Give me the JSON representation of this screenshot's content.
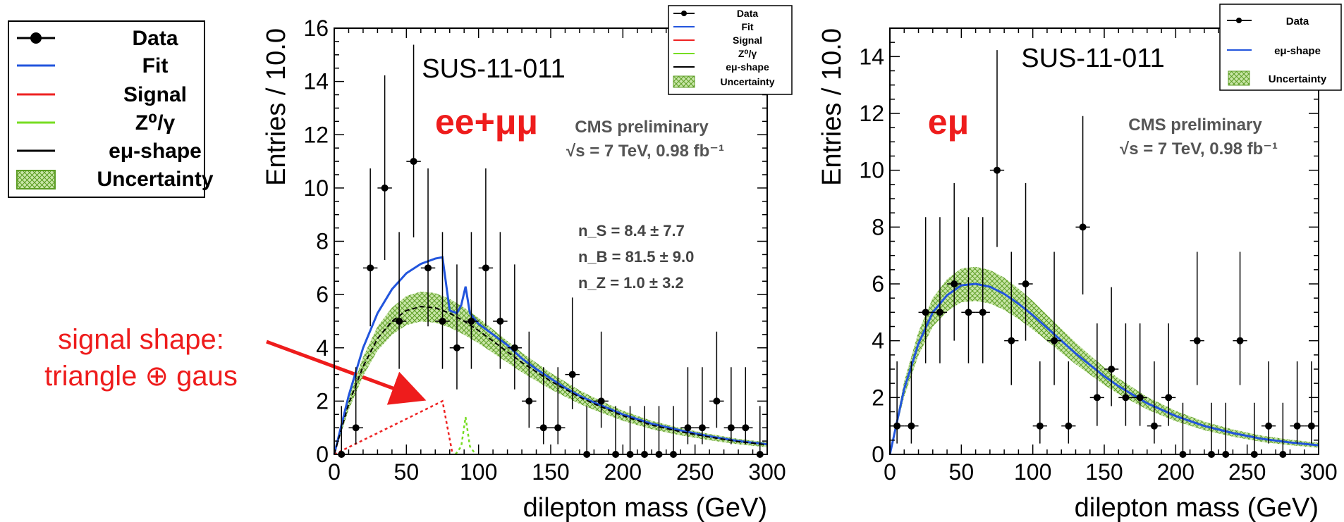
{
  "colors": {
    "data": "#000000",
    "fit": "#2255dd",
    "signal": "#ee2222",
    "z": "#77dd22",
    "emu": "#000000",
    "uncertainty": "#66aa22",
    "annotation": "#ee1c1c"
  },
  "big_legend": {
    "items": [
      "Data",
      "Fit",
      "Signal",
      "Z⁰/γ",
      "eμ-shape",
      "Uncertainty"
    ]
  },
  "annotation": {
    "line1": "signal shape:",
    "line2": "triangle ⊕ gaus"
  },
  "chart_data": [
    {
      "type": "scatter",
      "xlabel": "dilepton mass (GeV)",
      "ylabel": "Entries / 10.0",
      "xlim": [
        0,
        300
      ],
      "ylim": [
        0,
        16
      ],
      "xticks": [
        0,
        50,
        100,
        150,
        200,
        250,
        300
      ],
      "yticks": [
        0,
        2,
        4,
        6,
        8,
        10,
        12,
        14,
        16
      ],
      "tag": "SUS-11-011",
      "channel": "ee+μμ",
      "cms": "CMS preliminary",
      "energy": "√s = 7 TeV, 0.98 fb⁻¹",
      "fit_results": [
        "n_S = 8.4 ± 7.7",
        "n_B = 81.5 ± 9.0",
        "n_Z = 1.0 ± 3.2"
      ],
      "legend": [
        "Data",
        "Fit",
        "Signal",
        "Z⁰/γ",
        "eμ-shape",
        "Uncertainty"
      ],
      "legend_position": "top-right",
      "series": [
        {
          "name": "Data",
          "points": [
            [
              5,
              0
            ],
            [
              15,
              1
            ],
            [
              25,
              7
            ],
            [
              35,
              10
            ],
            [
              45,
              5
            ],
            [
              55,
              11
            ],
            [
              65,
              7
            ],
            [
              75,
              5
            ],
            [
              85,
              4
            ],
            [
              95,
              5
            ],
            [
              105,
              7
            ],
            [
              115,
              5
            ],
            [
              125,
              4
            ],
            [
              135,
              2
            ],
            [
              145,
              1
            ],
            [
              155,
              1
            ],
            [
              165,
              3
            ],
            [
              175,
              0
            ],
            [
              185,
              2
            ],
            [
              195,
              0
            ],
            [
              205,
              0
            ],
            [
              215,
              0
            ],
            [
              225,
              0
            ],
            [
              235,
              0
            ],
            [
              245,
              1
            ],
            [
              255,
              1
            ],
            [
              265,
              2
            ],
            [
              275,
              1
            ],
            [
              285,
              1
            ],
            [
              295,
              0
            ]
          ]
        },
        {
          "name": "Fit",
          "points": [
            [
              0,
              0
            ],
            [
              10,
              2.2
            ],
            [
              20,
              4.0
            ],
            [
              30,
              5.3
            ],
            [
              40,
              6.2
            ],
            [
              50,
              6.8
            ],
            [
              60,
              7.15
            ],
            [
              70,
              7.35
            ],
            [
              75,
              7.4
            ],
            [
              80,
              5.4
            ],
            [
              85,
              5.3
            ],
            [
              88,
              5.6
            ],
            [
              91,
              6.3
            ],
            [
              94,
              5.3
            ],
            [
              100,
              4.9
            ],
            [
              110,
              4.5
            ],
            [
              120,
              4.1
            ],
            [
              130,
              3.6
            ],
            [
              140,
              3.2
            ],
            [
              150,
              2.85
            ],
            [
              160,
              2.5
            ],
            [
              170,
              2.2
            ],
            [
              180,
              1.95
            ],
            [
              200,
              1.5
            ],
            [
              220,
              1.15
            ],
            [
              240,
              0.9
            ],
            [
              260,
              0.68
            ],
            [
              280,
              0.5
            ],
            [
              300,
              0.38
            ]
          ]
        },
        {
          "name": "Signal",
          "points": [
            [
              0,
              0
            ],
            [
              75,
              2.0
            ],
            [
              82,
              0
            ]
          ]
        },
        {
          "name": "Z⁰/γ",
          "points": [
            [
              84,
              0
            ],
            [
              88,
              0.3
            ],
            [
              91,
              1.4
            ],
            [
              94,
              0.3
            ],
            [
              98,
              0
            ]
          ]
        },
        {
          "name": "eμ-shape",
          "points": [
            [
              0,
              0
            ],
            [
              10,
              1.9
            ],
            [
              20,
              3.3
            ],
            [
              30,
              4.35
            ],
            [
              40,
              5.0
            ],
            [
              50,
              5.4
            ],
            [
              60,
              5.55
            ],
            [
              70,
              5.5
            ],
            [
              80,
              5.3
            ],
            [
              90,
              5.0
            ],
            [
              100,
              4.65
            ],
            [
              110,
              4.25
            ],
            [
              120,
              3.85
            ],
            [
              130,
              3.45
            ],
            [
              140,
              3.1
            ],
            [
              150,
              2.75
            ],
            [
              160,
              2.45
            ],
            [
              170,
              2.15
            ],
            [
              180,
              1.9
            ],
            [
              200,
              1.45
            ],
            [
              220,
              1.1
            ],
            [
              240,
              0.85
            ],
            [
              260,
              0.65
            ],
            [
              280,
              0.48
            ],
            [
              300,
              0.36
            ]
          ]
        }
      ]
    },
    {
      "type": "scatter",
      "xlabel": "dilepton mass (GeV)",
      "ylabel": "Entries / 10.0",
      "xlim": [
        0,
        300
      ],
      "ylim": [
        0,
        15
      ],
      "xticks": [
        0,
        50,
        100,
        150,
        200,
        250,
        300
      ],
      "yticks": [
        0,
        2,
        4,
        6,
        8,
        10,
        12,
        14
      ],
      "tag": "SUS-11-011",
      "channel": "eμ",
      "cms": "CMS preliminary",
      "energy": "√s = 7 TeV, 0.98 fb⁻¹",
      "legend": [
        "Data",
        "eμ-shape",
        "Uncertainty"
      ],
      "legend_position": "top-right",
      "series": [
        {
          "name": "Data",
          "points": [
            [
              5,
              1
            ],
            [
              15,
              1
            ],
            [
              25,
              5
            ],
            [
              35,
              5
            ],
            [
              45,
              6
            ],
            [
              55,
              5
            ],
            [
              65,
              5
            ],
            [
              75,
              10
            ],
            [
              85,
              4
            ],
            [
              95,
              6
            ],
            [
              105,
              1
            ],
            [
              115,
              4
            ],
            [
              125,
              1
            ],
            [
              135,
              8
            ],
            [
              145,
              2
            ],
            [
              155,
              3
            ],
            [
              165,
              2
            ],
            [
              175,
              2
            ],
            [
              185,
              1
            ],
            [
              195,
              2
            ],
            [
              205,
              0
            ],
            [
              215,
              4
            ],
            [
              225,
              0
            ],
            [
              235,
              0
            ],
            [
              245,
              4
            ],
            [
              255,
              0
            ],
            [
              265,
              1
            ],
            [
              275,
              0
            ],
            [
              285,
              1
            ],
            [
              295,
              1
            ]
          ]
        },
        {
          "name": "eμ-shape",
          "points": [
            [
              0,
              0
            ],
            [
              10,
              2.3
            ],
            [
              20,
              3.9
            ],
            [
              30,
              5.0
            ],
            [
              40,
              5.6
            ],
            [
              50,
              5.95
            ],
            [
              60,
              6.0
            ],
            [
              70,
              5.9
            ],
            [
              80,
              5.65
            ],
            [
              90,
              5.3
            ],
            [
              100,
              4.9
            ],
            [
              110,
              4.45
            ],
            [
              120,
              4.0
            ],
            [
              130,
              3.55
            ],
            [
              140,
              3.15
            ],
            [
              150,
              2.75
            ],
            [
              160,
              2.4
            ],
            [
              170,
              2.1
            ],
            [
              180,
              1.8
            ],
            [
              200,
              1.35
            ],
            [
              220,
              1.0
            ],
            [
              240,
              0.75
            ],
            [
              260,
              0.55
            ],
            [
              280,
              0.42
            ],
            [
              300,
              0.32
            ]
          ]
        }
      ]
    }
  ]
}
